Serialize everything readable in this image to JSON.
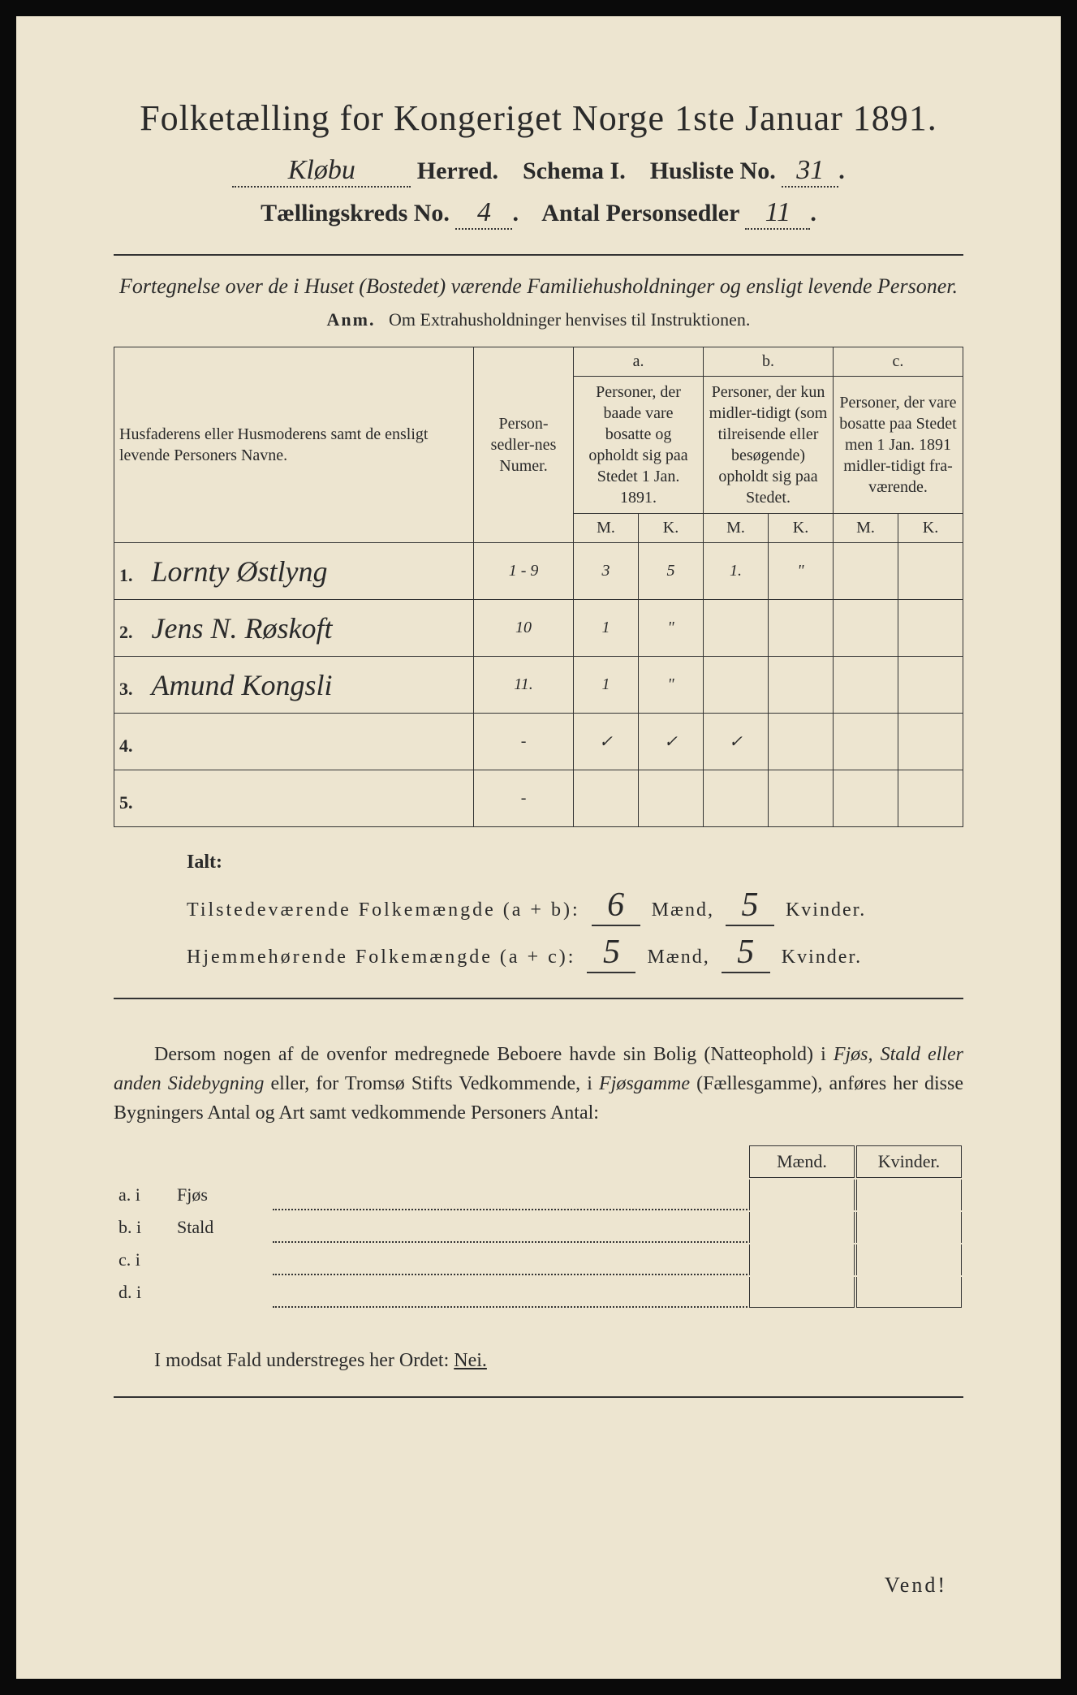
{
  "title": "Folketælling for Kongeriget Norge 1ste Januar 1891.",
  "header": {
    "herred_value": "Kløbu",
    "herred_label": "Herred.",
    "schema_label": "Schema I.",
    "husliste_label": "Husliste No.",
    "husliste_value": "31",
    "kreds_label": "Tællingskreds No.",
    "kreds_value": "4",
    "antal_label": "Antal Personsedler",
    "antal_value": "11"
  },
  "subtitle": "Fortegnelse over de i Huset (Bostedet) værende Familiehusholdninger og ensligt levende Personer.",
  "anm_label": "Anm.",
  "anm_text": "Om Extrahusholdninger henvises til Instruktionen.",
  "table": {
    "col_names": "Husfaderens eller Husmoderens samt de ensligt levende Personers Navne.",
    "col_numer": "Person-sedler-nes Numer.",
    "col_a_top": "a.",
    "col_a": "Personer, der baade vare bosatte og opholdt sig paa Stedet 1 Jan. 1891.",
    "col_b_top": "b.",
    "col_b": "Personer, der kun midler-tidigt (som tilreisende eller besøgende) opholdt sig paa Stedet.",
    "col_c_top": "c.",
    "col_c": "Personer, der vare bosatte paa Stedet men 1 Jan. 1891 midler-tidigt fra-værende.",
    "m": "M.",
    "k": "K.",
    "rows": [
      {
        "n": "1.",
        "name": "Lornty Østlyng",
        "numer": "1 - 9",
        "am": "3",
        "ak": "5",
        "bm": "1.",
        "bk": "\"",
        "cm": "",
        "ck": ""
      },
      {
        "n": "2.",
        "name": "Jens N. Røskoft",
        "numer": "10",
        "am": "1",
        "ak": "\"",
        "bm": "",
        "bk": "",
        "cm": "",
        "ck": ""
      },
      {
        "n": "3.",
        "name": "Amund Kongsli",
        "numer": "11.",
        "am": "1",
        "ak": "\"",
        "bm": "",
        "bk": "",
        "cm": "",
        "ck": ""
      },
      {
        "n": "4.",
        "name": "",
        "numer": "-",
        "am": "✓",
        "ak": "✓",
        "bm": "✓",
        "bk": "",
        "cm": "",
        "ck": ""
      },
      {
        "n": "5.",
        "name": "",
        "numer": "-",
        "am": "",
        "ak": "",
        "bm": "",
        "bk": "",
        "cm": "",
        "ck": ""
      }
    ]
  },
  "ialt": "Ialt:",
  "totals": {
    "line1_label": "Tilstedeværende Folkemængde (a + b):",
    "line1_m": "6",
    "line1_k": "5",
    "line2_label": "Hjemmehørende Folkemængde (a + c):",
    "line2_m": "5",
    "line2_k": "5",
    "maend": "Mænd,",
    "kvinder": "Kvinder."
  },
  "paragraph": {
    "p1a": "Dersom nogen af de ovenfor medregnede Beboere havde sin Bolig (Natteophold) i ",
    "p1b": "Fjøs, Stald eller anden Sidebygning",
    "p1c": " eller, for Tromsø Stifts Vedkommende, i ",
    "p1d": "Fjøsgamme",
    "p1e": " (Fællesgamme), anføres her disse Bygningers Antal og Art samt vedkommende Personers Antal:"
  },
  "sidebyg": {
    "maend": "Mænd.",
    "kvinder": "Kvinder.",
    "rows": [
      {
        "label": "a.  i",
        "name": "Fjøs"
      },
      {
        "label": "b.  i",
        "name": "Stald"
      },
      {
        "label": "c.  i",
        "name": ""
      },
      {
        "label": "d.  i",
        "name": ""
      }
    ]
  },
  "bottom": "I modsat Fald understreges her Ordet: ",
  "nei": "Nei.",
  "vend": "Vend!",
  "colors": {
    "paper": "#ede5d0",
    "ink": "#2a2a2a",
    "background": "#0a0a0a"
  }
}
